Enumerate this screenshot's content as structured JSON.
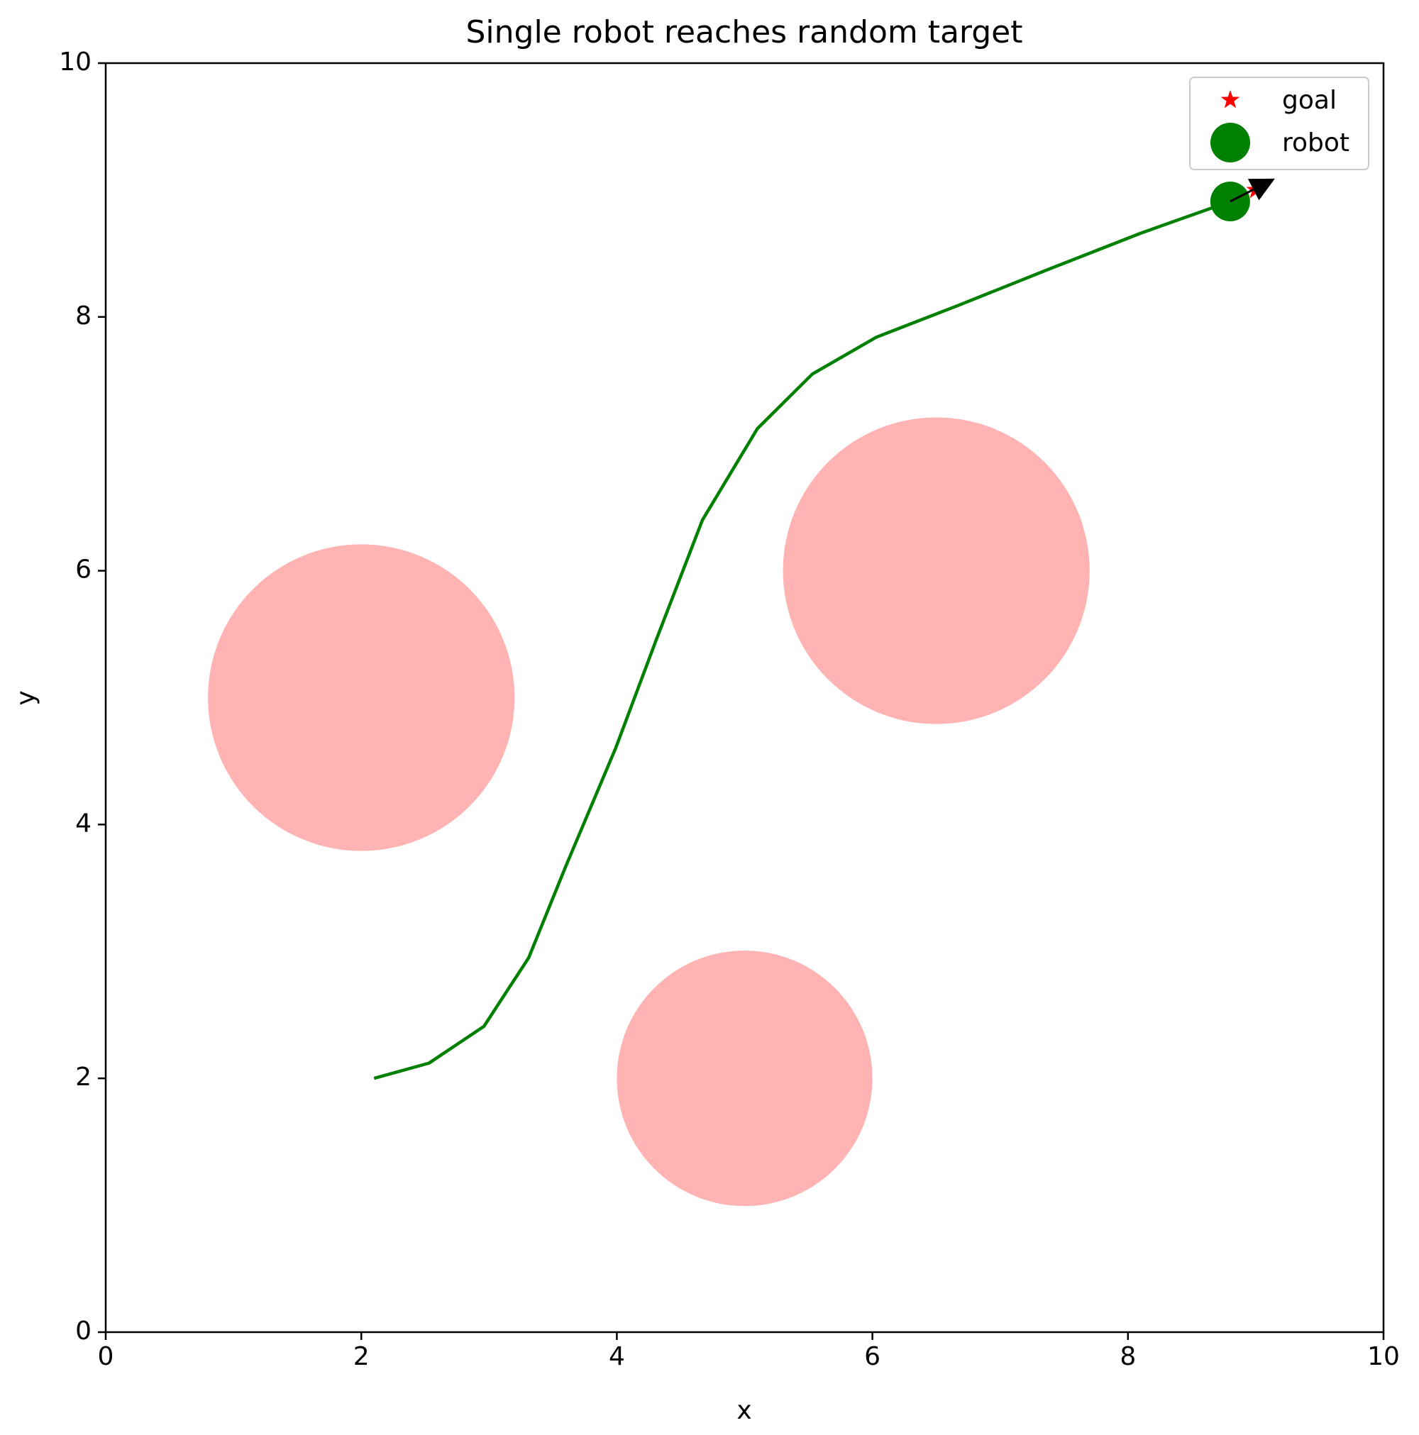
{
  "chart_data": {
    "type": "line",
    "title": "Single robot reaches random target",
    "xlabel": "x",
    "ylabel": "y",
    "xlim": [
      0,
      10
    ],
    "ylim": [
      0,
      10
    ],
    "xticks": [
      0,
      2,
      4,
      6,
      8,
      10
    ],
    "yticks": [
      0,
      2,
      4,
      6,
      8,
      10
    ],
    "legend": "upper right",
    "obstacles": {
      "color": "#ffb3b3",
      "x": [
        2,
        6.5,
        5
      ],
      "y": [
        5,
        6,
        2
      ],
      "r": [
        1.2,
        1.2,
        1.0
      ]
    },
    "trajectory": {
      "color": "green",
      "x": [
        2.1,
        2.53,
        2.96,
        3.31,
        3.6,
        3.99,
        4.31,
        4.67,
        5.1,
        5.53,
        6.03,
        6.67,
        7.39,
        8.1,
        8.8
      ],
      "y": [
        2.0,
        2.12,
        2.41,
        2.95,
        3.67,
        4.6,
        5.46,
        6.4,
        7.12,
        7.55,
        7.84,
        8.09,
        8.38,
        8.66,
        8.91
      ]
    },
    "goal": {
      "name": "goal",
      "color": "red",
      "x": 9,
      "y": 9
    },
    "robot": {
      "name": "robot",
      "color": "green",
      "x": 8.8,
      "y": 8.91,
      "arrow_to": [
        9.15,
        9.09
      ]
    }
  }
}
